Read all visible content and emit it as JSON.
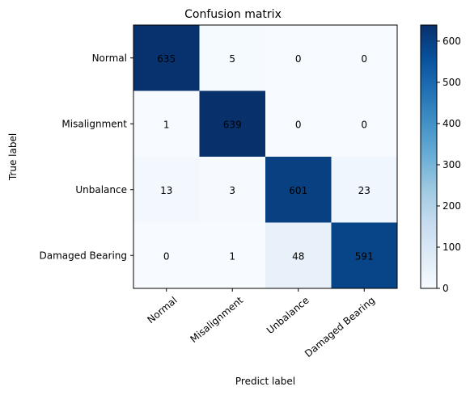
{
  "chart_data": {
    "type": "heatmap",
    "title": "Confusion matrix",
    "xlabel": "Predict label",
    "ylabel": "True label",
    "categories": [
      "Normal",
      "Misalignment",
      "Unbalance",
      "Damaged Bearing"
    ],
    "matrix": [
      [
        635,
        5,
        0,
        0
      ],
      [
        1,
        639,
        0,
        0
      ],
      [
        13,
        3,
        601,
        23
      ],
      [
        0,
        1,
        48,
        591
      ]
    ],
    "colorbar": {
      "range": [
        0,
        639
      ],
      "ticks": [
        0,
        100,
        200,
        300,
        400,
        500,
        600
      ]
    },
    "colormap": "Blues"
  }
}
